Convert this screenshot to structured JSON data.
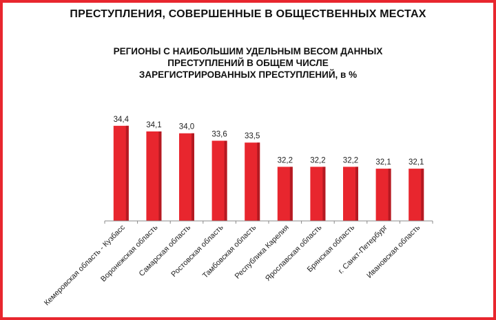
{
  "page_title": "ПРЕСТУПЛЕНИЯ, СОВЕРШЕННЫЕ В ОБЩЕСТВЕННЫХ МЕСТАХ",
  "chart_data": {
    "type": "bar",
    "title_lines": [
      "РЕГИОНЫ С НАИБОЛЬШИМ УДЕЛЬНЫМ ВЕСОМ ДАННЫХ",
      "ПРЕСТУПЛЕНИЙ В ОБЩЕМ ЧИСЛЕ",
      "ЗАРЕГИСТРИРОВАННЫХ ПРЕСТУПЛЕНИЙ, в %"
    ],
    "categories": [
      "Кемеровская область - Кузбасс",
      "Воронежская область",
      "Самарская область",
      "Ростовская область",
      "Тамбовская область",
      "Республика Карелия",
      "Ярославская область",
      "Брянская область",
      "г. Санкт-Петербург",
      "Ивановская область"
    ],
    "values": [
      34.4,
      34.1,
      34.0,
      33.6,
      33.5,
      32.2,
      32.2,
      32.2,
      32.1,
      32.1
    ],
    "value_labels": [
      "34,4",
      "34,1",
      "34,0",
      "33,6",
      "33,5",
      "32,2",
      "32,2",
      "32,2",
      "32,1",
      "32,1"
    ],
    "ylim": [
      29.3,
      34.8
    ],
    "bar_color": "#e8262e",
    "grid": false,
    "legend": "none"
  }
}
